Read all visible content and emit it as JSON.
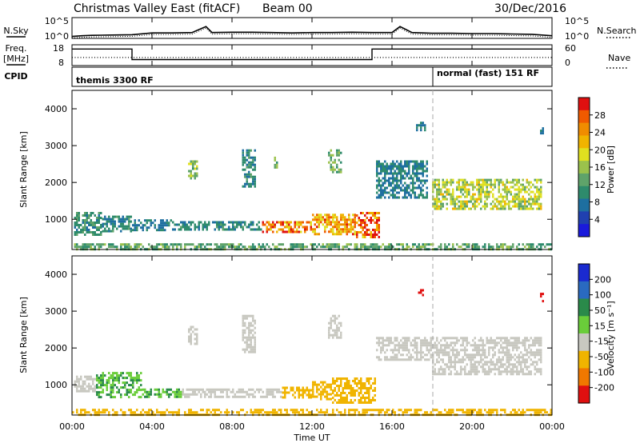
{
  "header": {
    "title": "Christmas Valley East (fitACF)",
    "beam": "Beam 00",
    "date": "30/Dec/2016"
  },
  "noise_panel": {
    "left_label": "N.Sky",
    "right_label": "N.Search",
    "left_ticks": [
      "10^5",
      "10^0"
    ],
    "right_ticks": [
      "10^5",
      "10^0"
    ]
  },
  "freq_panel": {
    "left_label_line1": "Freq.",
    "left_label_line2": "[MHz]",
    "right_label": "Nave",
    "left_ticks": [
      "18",
      "8"
    ],
    "right_ticks": [
      "60",
      "0"
    ]
  },
  "cpid": {
    "label": "CPID",
    "segments": [
      {
        "start_hour": 0,
        "end_hour": 18,
        "text": "themis 3300 RF"
      },
      {
        "start_hour": 18,
        "end_hour": 24,
        "text": "normal (fast) 151 RF"
      }
    ]
  },
  "power_panel": {
    "ylabel": "Slant Range [km]",
    "yticks": [
      "1000",
      "2000",
      "3000",
      "4000"
    ],
    "colorbar_label": "Power [dB]",
    "colorbar_ticks": [
      "4",
      "8",
      "12",
      "16",
      "20",
      "24",
      "28"
    ],
    "colors": [
      "#1a1adc",
      "#2040b0",
      "#1e6fa0",
      "#2e8b6c",
      "#5fa36a",
      "#9bc24c",
      "#e0e020",
      "#f0b400",
      "#f08c00",
      "#f05a00",
      "#e01010"
    ]
  },
  "velocity_panel": {
    "ylabel": "Slant Range [km]",
    "yticks": [
      "1000",
      "2000",
      "3000",
      "4000"
    ],
    "colorbar_label": "Velocity [m s⁻¹]",
    "colorbar_ticks": [
      "200",
      "100",
      "50",
      "15",
      "-15",
      "-50",
      "-100",
      "-200"
    ],
    "colors": [
      "#1a2ad0",
      "#2a6ac0",
      "#2a8a4a",
      "#6acd3a",
      "#c8c8c0",
      "#f0b400",
      "#f07800",
      "#e01010"
    ]
  },
  "xaxis": {
    "label": "Time UT",
    "ticks": [
      "00:00",
      "04:00",
      "08:00",
      "12:00",
      "16:00",
      "20:00",
      "00:00"
    ]
  },
  "chart_data": [
    {
      "type": "line",
      "name": "noise",
      "x_hours": [
        0,
        0.5,
        1,
        2,
        3,
        4,
        5,
        6,
        6.7,
        7,
        8,
        9,
        10,
        11,
        12,
        13,
        14,
        15,
        16,
        16.4,
        17,
        18,
        19,
        20,
        21,
        22,
        23,
        24
      ],
      "y_log10": [
        0.1,
        0.3,
        0.4,
        0.5,
        0.6,
        1.1,
        1.1,
        1.2,
        2.9,
        1.2,
        1.3,
        1.3,
        1.2,
        1.1,
        1.2,
        1.2,
        1.3,
        1.2,
        1.2,
        2.9,
        1.2,
        1.0,
        1.0,
        0.9,
        0.9,
        0.8,
        0.7,
        0.3
      ],
      "ylim_log10": [
        0,
        5
      ]
    },
    {
      "type": "line",
      "name": "frequency",
      "x_hours": [
        0,
        3,
        3,
        15,
        15,
        24
      ],
      "y_mhz": [
        16.5,
        16.5,
        10.5,
        10.5,
        16.5,
        16.5
      ],
      "ylim": [
        8,
        18
      ]
    },
    {
      "type": "line",
      "name": "nave",
      "x_hours": [
        0,
        24
      ],
      "y": [
        22,
        22
      ],
      "ylim": [
        0,
        60
      ]
    },
    {
      "type": "heatmap",
      "name": "power",
      "units": "dB",
      "x_range_hours": [
        0,
        24
      ],
      "y_range_km": [
        180,
        4500
      ],
      "echo_regions": [
        {
          "t0": 0.1,
          "t1": 1.5,
          "r0": 600,
          "r1": 1200,
          "value": 10
        },
        {
          "t0": 1.5,
          "t1": 3.0,
          "r0": 650,
          "r1": 1100,
          "value": 9
        },
        {
          "t0": 3.0,
          "t1": 5.0,
          "r0": 700,
          "r1": 1000,
          "value": 8
        },
        {
          "t0": 5.0,
          "t1": 9.5,
          "r0": 700,
          "r1": 950,
          "value": 9
        },
        {
          "t0": 9.5,
          "t1": 12.0,
          "r0": 650,
          "r1": 950,
          "value": 24
        },
        {
          "t0": 12.0,
          "t1": 14.2,
          "r0": 600,
          "r1": 1150,
          "value": 22
        },
        {
          "t0": 14.2,
          "t1": 15.3,
          "r0": 500,
          "r1": 1200,
          "value": 25
        },
        {
          "t0": 5.8,
          "t1": 6.2,
          "r0": 2100,
          "r1": 2600,
          "value": 14
        },
        {
          "t0": 8.5,
          "t1": 9.2,
          "r0": 1900,
          "r1": 2900,
          "value": 9
        },
        {
          "t0": 10.1,
          "t1": 10.3,
          "r0": 2400,
          "r1": 2700,
          "value": 14
        },
        {
          "t0": 12.8,
          "t1": 13.5,
          "r0": 2300,
          "r1": 2900,
          "value": 13
        },
        {
          "t0": 15.2,
          "t1": 17.8,
          "r0": 1600,
          "r1": 2600,
          "value": 8
        },
        {
          "t0": 17.2,
          "t1": 17.7,
          "r0": 3450,
          "r1": 3650,
          "value": 8
        },
        {
          "t0": 18.0,
          "t1": 23.5,
          "r0": 1300,
          "r1": 2100,
          "value": 16
        },
        {
          "t0": 23.4,
          "t1": 23.6,
          "r0": 3300,
          "r1": 3500,
          "value": 8
        },
        {
          "t0": 0.0,
          "t1": 24.0,
          "r0": 180,
          "r1": 350,
          "value": 12
        }
      ],
      "colorbar_range": [
        0,
        30
      ]
    },
    {
      "type": "heatmap",
      "name": "velocity",
      "units": "m s-1",
      "x_range_hours": [
        0,
        24
      ],
      "y_range_km": [
        180,
        4500
      ],
      "echo_regions": [
        {
          "t0": 0.1,
          "t1": 1.2,
          "r0": 800,
          "r1": 1250,
          "value": -5
        },
        {
          "t0": 1.2,
          "t1": 3.5,
          "r0": 650,
          "r1": 1350,
          "value": 30
        },
        {
          "t0": 3.5,
          "t1": 5.5,
          "r0": 650,
          "r1": 900,
          "value": 30
        },
        {
          "t0": 5.5,
          "t1": 8.5,
          "r0": 700,
          "r1": 900,
          "value": 0
        },
        {
          "t0": 8.5,
          "t1": 10.5,
          "r0": 700,
          "r1": 900,
          "value": 0
        },
        {
          "t0": 10.5,
          "t1": 12.0,
          "r0": 650,
          "r1": 950,
          "value": -30
        },
        {
          "t0": 12.0,
          "t1": 13.0,
          "r0": 600,
          "r1": 1100,
          "value": -30
        },
        {
          "t0": 13.0,
          "t1": 15.2,
          "r0": 500,
          "r1": 1200,
          "value": -30
        },
        {
          "t0": 5.8,
          "t1": 6.2,
          "r0": 2100,
          "r1": 2600,
          "value": 0
        },
        {
          "t0": 8.5,
          "t1": 9.2,
          "r0": 1900,
          "r1": 2900,
          "value": 0
        },
        {
          "t0": 12.8,
          "t1": 13.5,
          "r0": 2300,
          "r1": 2900,
          "value": 0
        },
        {
          "t0": 15.2,
          "t1": 18.0,
          "r0": 1700,
          "r1": 2300,
          "value": 0
        },
        {
          "t0": 17.3,
          "t1": 17.6,
          "r0": 3450,
          "r1": 3600,
          "value": -150
        },
        {
          "t0": 18.0,
          "t1": 23.5,
          "r0": 1300,
          "r1": 2300,
          "value": 0
        },
        {
          "t0": 23.4,
          "t1": 23.6,
          "r0": 3300,
          "r1": 3500,
          "value": -120
        },
        {
          "t0": 0.0,
          "t1": 24.0,
          "r0": 180,
          "r1": 350,
          "value": -20
        }
      ],
      "colorbar_range": [
        -250,
        250
      ]
    }
  ]
}
